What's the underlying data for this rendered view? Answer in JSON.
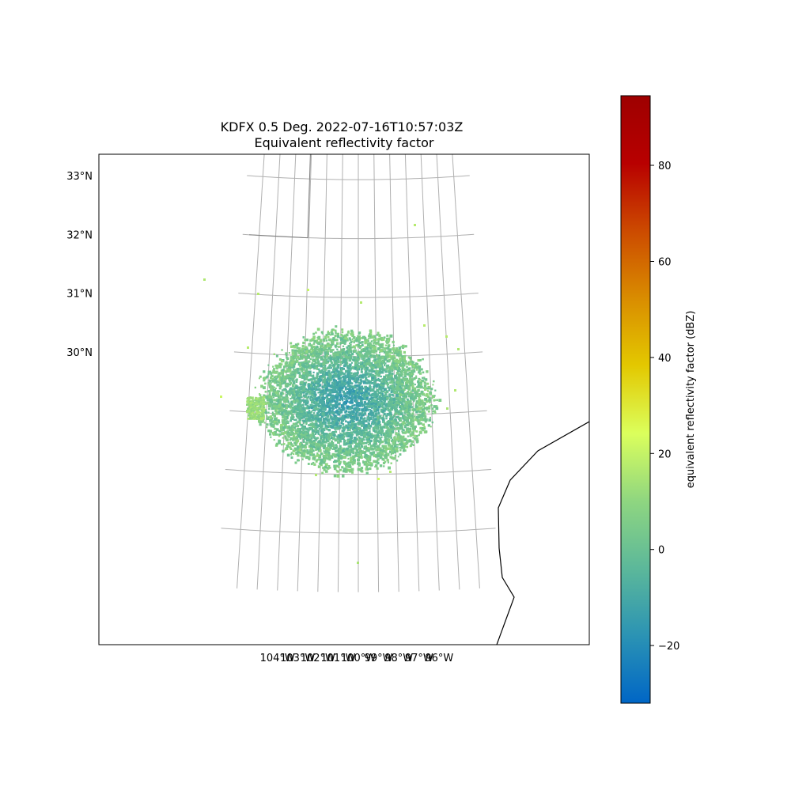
{
  "title_line1": "KDFX 0.5 Deg. 2022-07-16T10:57:03Z",
  "title_line2": "Equivalent reflectivity factor",
  "map": {
    "lon_ticks": [
      "104°W",
      "103°W",
      "102°W",
      "101°W",
      "100°W",
      "99°W",
      "98°W",
      "97°W",
      "96°W"
    ],
    "lat_ticks": [
      "33°N",
      "32°N",
      "31°N",
      "30°N"
    ],
    "gridlines": true,
    "coastline_color": "#000000",
    "gridline_color": "#b0b0b0"
  },
  "colorbar": {
    "label": "equivalent reflectivity factor (dBZ)",
    "ticks": [
      "80",
      "60",
      "40",
      "20",
      "0",
      "−20"
    ],
    "tick_values": [
      80,
      60,
      40,
      20,
      0,
      -20
    ],
    "range": [
      -32,
      94.5
    ],
    "colors": [
      "#0066c6",
      "#2b93b4",
      "#5cb89a",
      "#8fd680",
      "#dbff5c",
      "#e3c800",
      "#d98c00",
      "#cc4a00",
      "#b80000",
      "#9e0000"
    ]
  },
  "chart_data": {
    "type": "heatmap",
    "title": "KDFX 0.5 Deg. 2022-07-16T10:57:03Z\nEquivalent reflectivity factor",
    "xlabel": "",
    "ylabel": "",
    "x_range_lon": [
      -104.8,
      -95.8
    ],
    "y_range_lat": [
      27.0,
      33.3
    ],
    "radar_center": {
      "lon": -100.28,
      "lat": 29.27
    },
    "values_dbz_range": [
      -25,
      30
    ],
    "dominant_values_dbz": [
      -15,
      10
    ],
    "colorbar_label": "equivalent reflectivity factor (dBZ)",
    "colorbar_range": [
      -32,
      94.5
    ]
  }
}
